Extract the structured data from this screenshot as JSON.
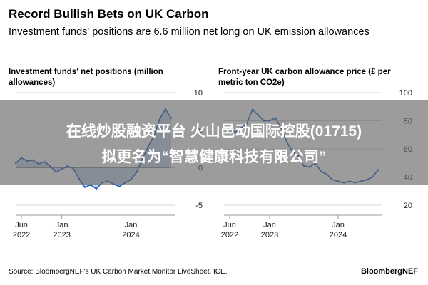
{
  "header": {
    "title": "Record Bullish Bets on UK Carbon",
    "subtitle": "Investment funds' positions are 6.6 million net long on UK emission allowances"
  },
  "chart_data": [
    {
      "type": "area",
      "title": "Investment funds' net positions (million allowances)",
      "color": "#1f5fc1",
      "ylim": [
        -5,
        10
      ],
      "y_ticks": [
        "10",
        "5",
        "0",
        "-5"
      ],
      "x_ticks": [
        {
          "top": "Jun",
          "bottom": "2022",
          "date": "2022-06"
        },
        {
          "top": "Jan",
          "bottom": "2023",
          "date": "2023-01"
        },
        {
          "top": "Jan",
          "bottom": "2024",
          "date": "2024-01"
        }
      ],
      "x": [
        "2022-05",
        "2022-06",
        "2022-07",
        "2022-08",
        "2022-09",
        "2022-10",
        "2022-11",
        "2022-12",
        "2023-01",
        "2023-02",
        "2023-03",
        "2023-04",
        "2023-05",
        "2023-06",
        "2023-07",
        "2023-08",
        "2023-09",
        "2023-10",
        "2023-11",
        "2023-12",
        "2024-01",
        "2024-02",
        "2024-03",
        "2024-04",
        "2024-05",
        "2024-06",
        "2024-07",
        "2024-08"
      ],
      "values": [
        0.6,
        1.3,
        0.9,
        1.0,
        0.5,
        0.8,
        0.2,
        -0.6,
        -0.2,
        0.2,
        -0.1,
        -1.5,
        -2.6,
        -2.3,
        -2.8,
        -2.0,
        -1.8,
        -2.2,
        -2.5,
        -2.0,
        -1.6,
        -0.6,
        1.2,
        2.8,
        4.2,
        6.5,
        7.8,
        6.6
      ]
    },
    {
      "type": "line",
      "title": "Front-year UK carbon allowance price (£ per metric ton CO2e)",
      "color": "#1f5fc1",
      "ylim": [
        20,
        100
      ],
      "y_ticks": [
        "100",
        "80",
        "60",
        "40",
        "20"
      ],
      "x_ticks": [
        {
          "top": "Jun",
          "bottom": "2022",
          "date": "2022-06"
        },
        {
          "top": "Jan",
          "bottom": "2023",
          "date": "2023-01"
        },
        {
          "top": "Jan",
          "bottom": "2024",
          "date": "2024-01"
        }
      ],
      "x": [
        "2022-05",
        "2022-06",
        "2022-07",
        "2022-08",
        "2022-09",
        "2022-10",
        "2022-11",
        "2022-12",
        "2023-01",
        "2023-02",
        "2023-03",
        "2023-04",
        "2023-05",
        "2023-06",
        "2023-07",
        "2023-08",
        "2023-09",
        "2023-10",
        "2023-11",
        "2023-12",
        "2024-01",
        "2024-02",
        "2024-03",
        "2024-04",
        "2024-05",
        "2024-06",
        "2024-07",
        "2024-08"
      ],
      "values": [
        76,
        74,
        72,
        75,
        78,
        88,
        84,
        80,
        80,
        82,
        75,
        65,
        58,
        55,
        48,
        47,
        50,
        44,
        42,
        38,
        37,
        36,
        37,
        36,
        37,
        38,
        40,
        45
      ]
    }
  ],
  "footer": {
    "source": "Source: BloombergNEF's UK Carbon Market Monitor LiveSheet, ICE.",
    "brand": "BloombergNEF"
  },
  "overlay": {
    "line1": "在线炒股融资平台 火山邑动国际控股(01715)",
    "line2": "拟更名为“智慧健康科技有限公司”"
  }
}
